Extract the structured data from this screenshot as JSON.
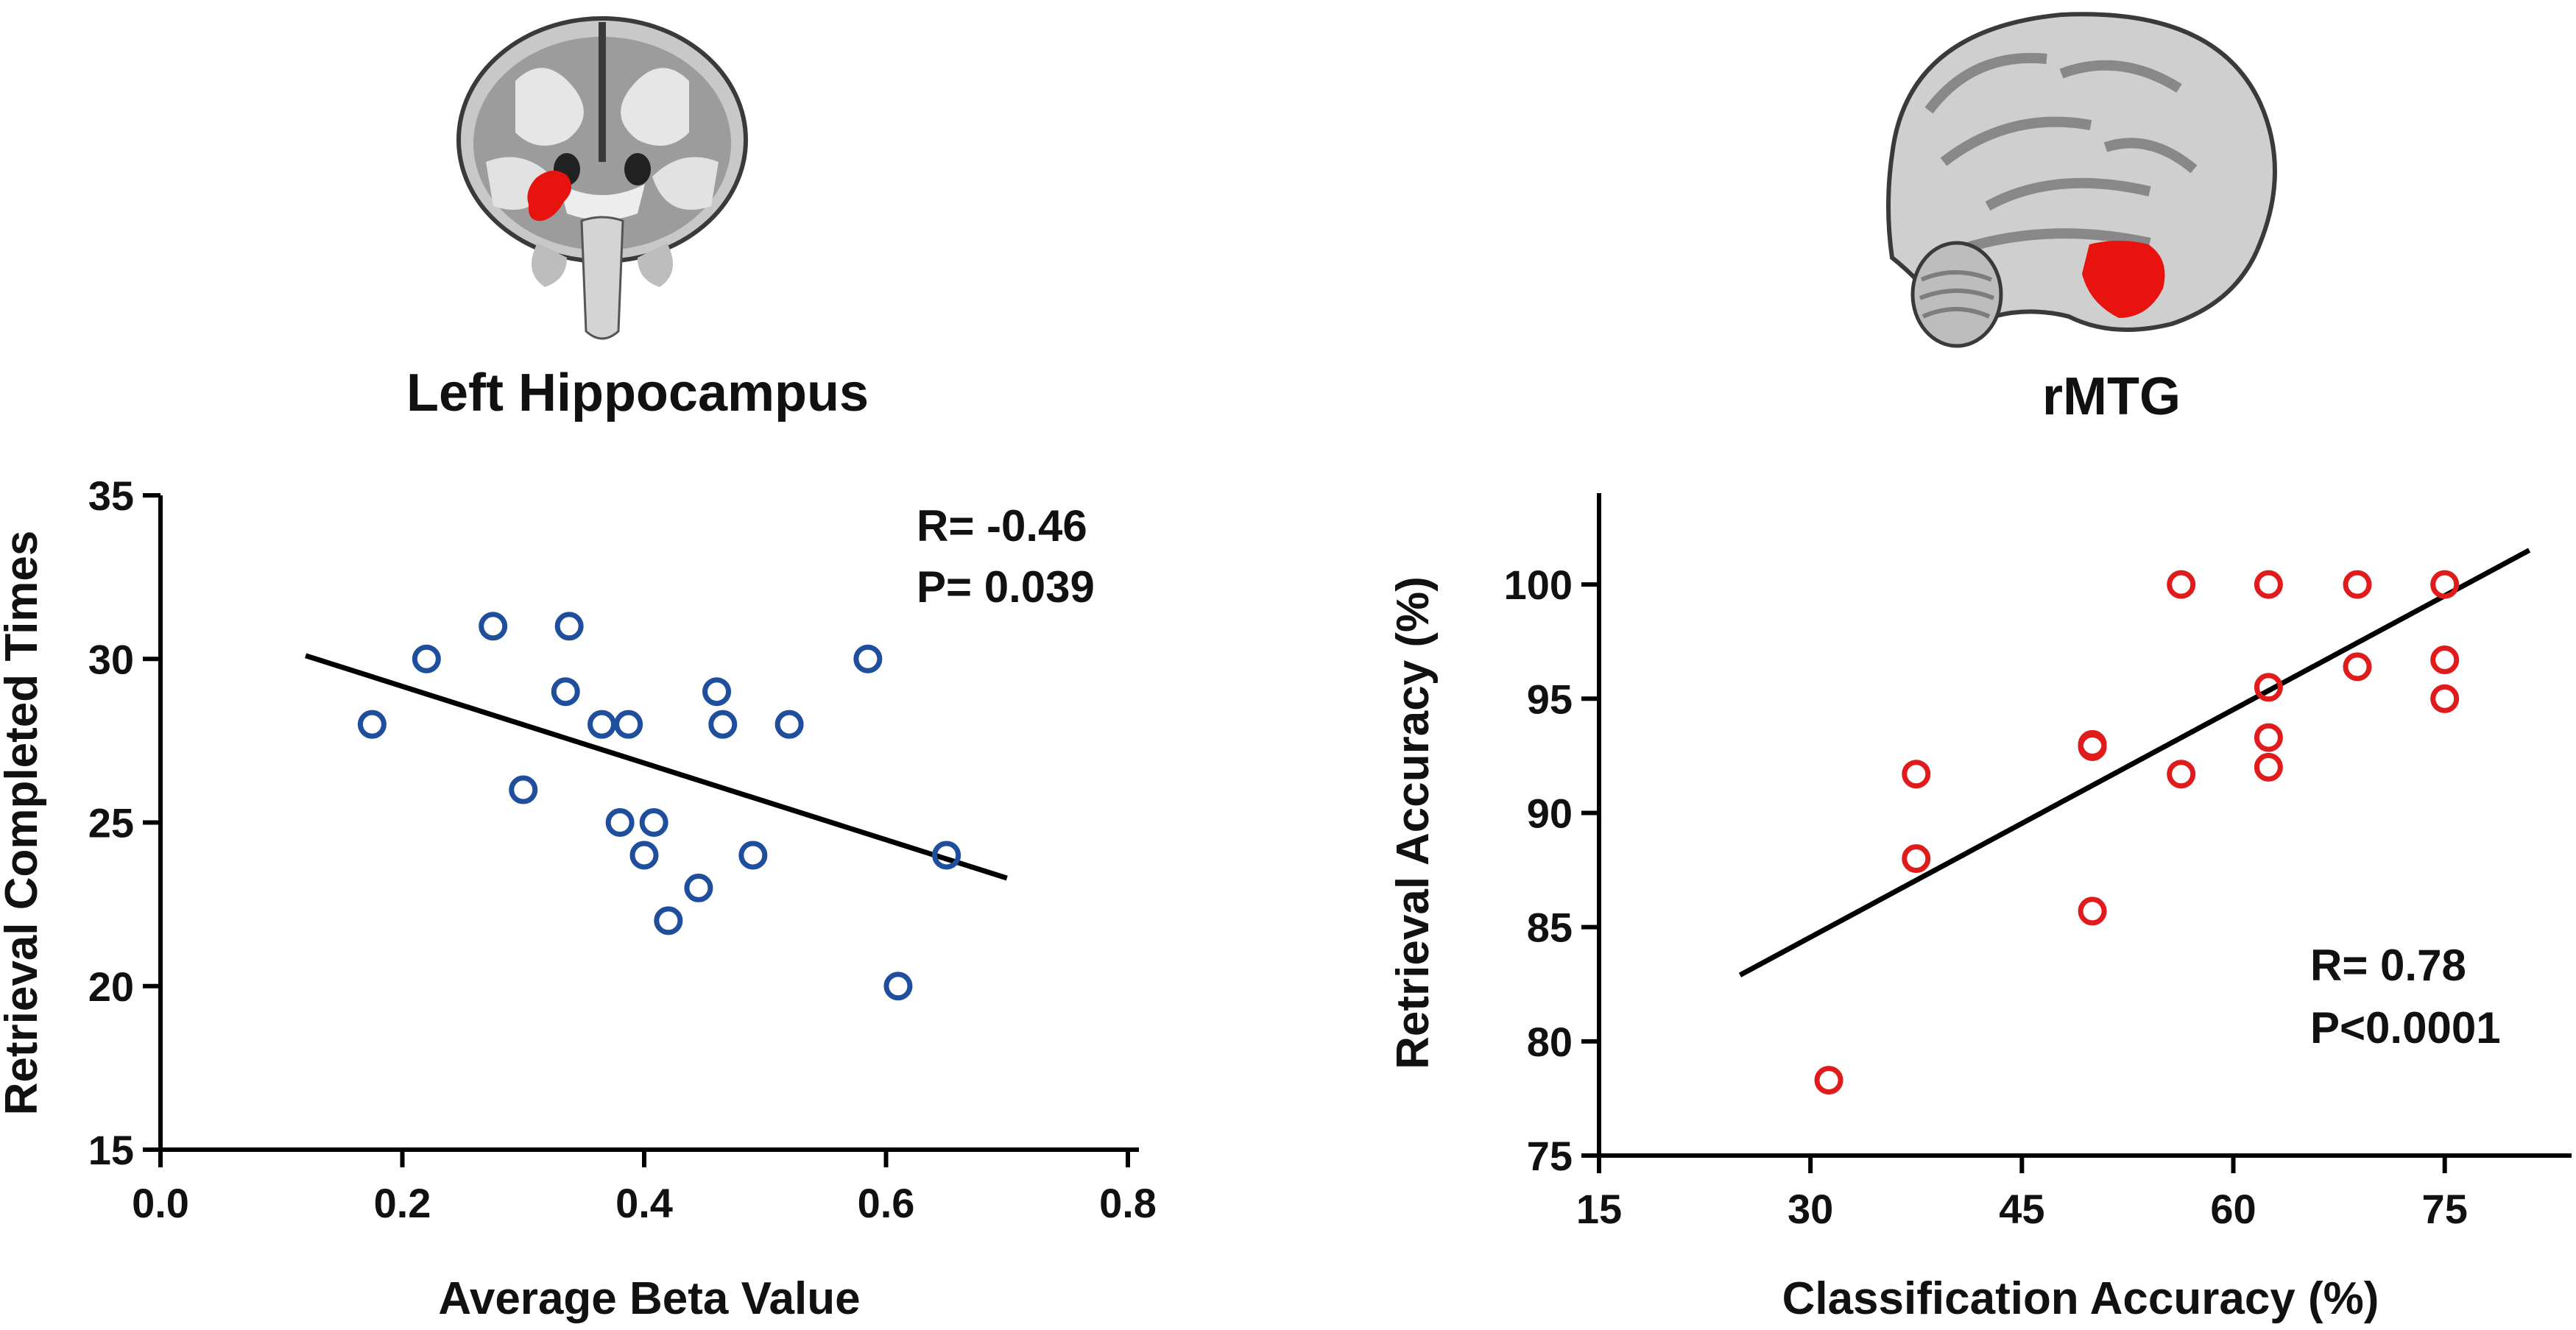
{
  "colors": {
    "left_points": "#1f4e9c",
    "right_points": "#e01b1b",
    "fit_line": "#000000",
    "roi": "#e8130f"
  },
  "brain_images": [
    {
      "view": "coronal",
      "roi_label": "Left Hippocampus"
    },
    {
      "view": "sagittal",
      "roi_label": "rMTG"
    }
  ],
  "chart_data": [
    {
      "type": "scatter",
      "title": "Left Hippocampus",
      "xlabel": "Average Beta Value",
      "ylabel": "Retrieval Completed Times",
      "xlim": [
        0.0,
        0.8
      ],
      "ylim": [
        15,
        35
      ],
      "xticks": [
        "0.0",
        "0.2",
        "0.4",
        "0.6",
        "0.8"
      ],
      "yticks": [
        "15",
        "20",
        "25",
        "30",
        "35"
      ],
      "x": [
        0.175,
        0.22,
        0.275,
        0.3,
        0.335,
        0.338,
        0.365,
        0.38,
        0.387,
        0.4,
        0.408,
        0.42,
        0.445,
        0.46,
        0.465,
        0.49,
        0.52,
        0.585,
        0.61,
        0.65
      ],
      "y": [
        28,
        30,
        31,
        26,
        29,
        31,
        28,
        25,
        28,
        24,
        25,
        22,
        23,
        29,
        28,
        24,
        28,
        30,
        20,
        24
      ],
      "fit_line": {
        "x": [
          0.12,
          0.7
        ],
        "y": [
          30.1,
          23.3
        ]
      },
      "annotation": {
        "r": "R= -0.46",
        "p": "P= 0.039"
      }
    },
    {
      "type": "scatter",
      "title": "rMTG",
      "xlabel": "Classification Accuracy (%)",
      "ylabel": "Retrieval Accuracy (%)",
      "xlim": [
        15,
        84
      ],
      "ylim": [
        75,
        104
      ],
      "xticks": [
        "15",
        "30",
        "45",
        "60",
        "75"
      ],
      "yticks": [
        "75",
        "80",
        "85",
        "90",
        "95",
        "100"
      ],
      "x": [
        31.3,
        37.5,
        37.5,
        50.0,
        50.0,
        50.0,
        56.3,
        56.3,
        62.5,
        62.5,
        62.5,
        62.5,
        68.8,
        68.8,
        75.0,
        75.0,
        75.0
      ],
      "y": [
        78.3,
        91.7,
        88.0,
        93.0,
        92.9,
        85.7,
        100.0,
        91.7,
        100.0,
        95.5,
        93.3,
        92.0,
        100.0,
        96.4,
        100.0,
        96.7,
        95.0
      ],
      "fit_line": {
        "x": [
          25.0,
          81.0
        ],
        "y": [
          82.9,
          101.5
        ]
      },
      "annotation": {
        "r": "R= 0.78",
        "p": "P<0.0001"
      }
    }
  ]
}
